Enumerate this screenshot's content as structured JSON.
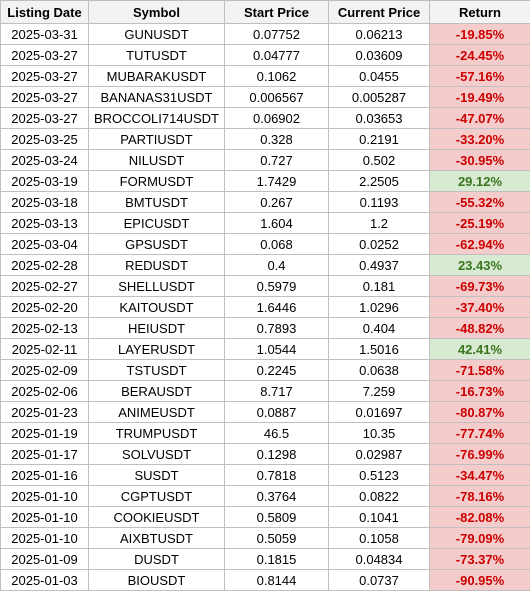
{
  "columns": [
    "Listing Date",
    "Symbol",
    "Start Price",
    "Current Price",
    "Return"
  ],
  "colors": {
    "negative_bg": "#f4cccc",
    "negative_text": "#cc0000",
    "positive_bg": "#d9ead3",
    "positive_text": "#38761d"
  },
  "rows": [
    {
      "date": "2025-03-31",
      "symbol": "GUNUSDT",
      "start": "0.07752",
      "current": "0.06213",
      "ret": "-19.85%",
      "sign": "neg"
    },
    {
      "date": "2025-03-27",
      "symbol": "TUTUSDT",
      "start": "0.04777",
      "current": "0.03609",
      "ret": "-24.45%",
      "sign": "neg"
    },
    {
      "date": "2025-03-27",
      "symbol": "MUBARAKUSDT",
      "start": "0.1062",
      "current": "0.0455",
      "ret": "-57.16%",
      "sign": "neg"
    },
    {
      "date": "2025-03-27",
      "symbol": "BANANAS31USDT",
      "start": "0.006567",
      "current": "0.005287",
      "ret": "-19.49%",
      "sign": "neg"
    },
    {
      "date": "2025-03-27",
      "symbol": "BROCCOLI714USDT",
      "start": "0.06902",
      "current": "0.03653",
      "ret": "-47.07%",
      "sign": "neg"
    },
    {
      "date": "2025-03-25",
      "symbol": "PARTIUSDT",
      "start": "0.328",
      "current": "0.2191",
      "ret": "-33.20%",
      "sign": "neg"
    },
    {
      "date": "2025-03-24",
      "symbol": "NILUSDT",
      "start": "0.727",
      "current": "0.502",
      "ret": "-30.95%",
      "sign": "neg"
    },
    {
      "date": "2025-03-19",
      "symbol": "FORMUSDT",
      "start": "1.7429",
      "current": "2.2505",
      "ret": "29.12%",
      "sign": "pos"
    },
    {
      "date": "2025-03-18",
      "symbol": "BMTUSDT",
      "start": "0.267",
      "current": "0.1193",
      "ret": "-55.32%",
      "sign": "neg"
    },
    {
      "date": "2025-03-13",
      "symbol": "EPICUSDT",
      "start": "1.604",
      "current": "1.2",
      "ret": "-25.19%",
      "sign": "neg"
    },
    {
      "date": "2025-03-04",
      "symbol": "GPSUSDT",
      "start": "0.068",
      "current": "0.0252",
      "ret": "-62.94%",
      "sign": "neg"
    },
    {
      "date": "2025-02-28",
      "symbol": "REDUSDT",
      "start": "0.4",
      "current": "0.4937",
      "ret": "23.43%",
      "sign": "pos"
    },
    {
      "date": "2025-02-27",
      "symbol": "SHELLUSDT",
      "start": "0.5979",
      "current": "0.181",
      "ret": "-69.73%",
      "sign": "neg"
    },
    {
      "date": "2025-02-20",
      "symbol": "KAITOUSDT",
      "start": "1.6446",
      "current": "1.0296",
      "ret": "-37.40%",
      "sign": "neg"
    },
    {
      "date": "2025-02-13",
      "symbol": "HEIUSDT",
      "start": "0.7893",
      "current": "0.404",
      "ret": "-48.82%",
      "sign": "neg"
    },
    {
      "date": "2025-02-11",
      "symbol": "LAYERUSDT",
      "start": "1.0544",
      "current": "1.5016",
      "ret": "42.41%",
      "sign": "pos"
    },
    {
      "date": "2025-02-09",
      "symbol": "TSTUSDT",
      "start": "0.2245",
      "current": "0.0638",
      "ret": "-71.58%",
      "sign": "neg"
    },
    {
      "date": "2025-02-06",
      "symbol": "BERAUSDT",
      "start": "8.717",
      "current": "7.259",
      "ret": "-16.73%",
      "sign": "neg"
    },
    {
      "date": "2025-01-23",
      "symbol": "ANIMEUSDT",
      "start": "0.0887",
      "current": "0.01697",
      "ret": "-80.87%",
      "sign": "neg"
    },
    {
      "date": "2025-01-19",
      "symbol": "TRUMPUSDT",
      "start": "46.5",
      "current": "10.35",
      "ret": "-77.74%",
      "sign": "neg"
    },
    {
      "date": "2025-01-17",
      "symbol": "SOLVUSDT",
      "start": "0.1298",
      "current": "0.02987",
      "ret": "-76.99%",
      "sign": "neg"
    },
    {
      "date": "2025-01-16",
      "symbol": "SUSDT",
      "start": "0.7818",
      "current": "0.5123",
      "ret": "-34.47%",
      "sign": "neg"
    },
    {
      "date": "2025-01-10",
      "symbol": "CGPTUSDT",
      "start": "0.3764",
      "current": "0.0822",
      "ret": "-78.16%",
      "sign": "neg"
    },
    {
      "date": "2025-01-10",
      "symbol": "COOKIEUSDT",
      "start": "0.5809",
      "current": "0.1041",
      "ret": "-82.08%",
      "sign": "neg"
    },
    {
      "date": "2025-01-10",
      "symbol": "AIXBTUSDT",
      "start": "0.5059",
      "current": "0.1058",
      "ret": "-79.09%",
      "sign": "neg"
    },
    {
      "date": "2025-01-09",
      "symbol": "DUSDT",
      "start": "0.1815",
      "current": "0.04834",
      "ret": "-73.37%",
      "sign": "neg"
    },
    {
      "date": "2025-01-03",
      "symbol": "BIOUSDT",
      "start": "0.8144",
      "current": "0.0737",
      "ret": "-90.95%",
      "sign": "neg"
    }
  ]
}
